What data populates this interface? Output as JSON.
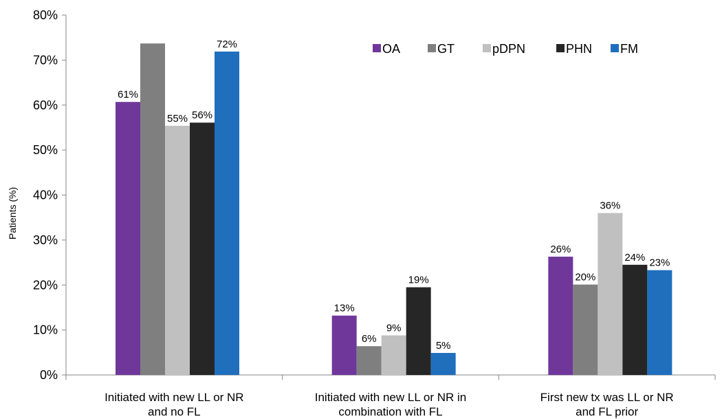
{
  "chart_data": {
    "type": "bar",
    "title": "",
    "ylabel": "Patients (%)",
    "xlabel": "",
    "ylim": [
      0,
      80
    ],
    "y_ticks": [
      0,
      10,
      20,
      30,
      40,
      50,
      60,
      70,
      80
    ],
    "y_tick_labels": [
      "0%",
      "10%",
      "20%",
      "30%",
      "40%",
      "50%",
      "60%",
      "70%",
      "80%"
    ],
    "categories": [
      [
        "Initiated with new LL or NR",
        "and no FL"
      ],
      [
        "Initiated with new LL or NR in",
        "combination with FL"
      ],
      [
        "First new tx was LL or NR",
        "and FL prior"
      ]
    ],
    "legend_position": "top-right",
    "grid": false,
    "series": [
      {
        "name": "OA",
        "color": "#70379b",
        "values": [
          60.7,
          13.2,
          26.3
        ],
        "labels": [
          "61%",
          "13%",
          "26%"
        ]
      },
      {
        "name": "GT",
        "color": "#7f7f7f",
        "values": [
          73.7,
          6.4,
          20.1
        ],
        "labels": [
          "",
          "6%",
          "20%"
        ]
      },
      {
        "name": "pDPN",
        "color": "#c0c0c0",
        "values": [
          55.4,
          8.8,
          36.0
        ],
        "labels": [
          "55%",
          "9%",
          "36%"
        ]
      },
      {
        "name": "PHN",
        "color": "#262626",
        "values": [
          56.1,
          19.5,
          24.5
        ],
        "labels": [
          "56%",
          "19%",
          "24%"
        ]
      },
      {
        "name": "FM",
        "color": "#1f6fbd",
        "values": [
          71.9,
          4.9,
          23.3
        ],
        "labels": [
          "72%",
          "5%",
          "23%"
        ]
      }
    ]
  }
}
